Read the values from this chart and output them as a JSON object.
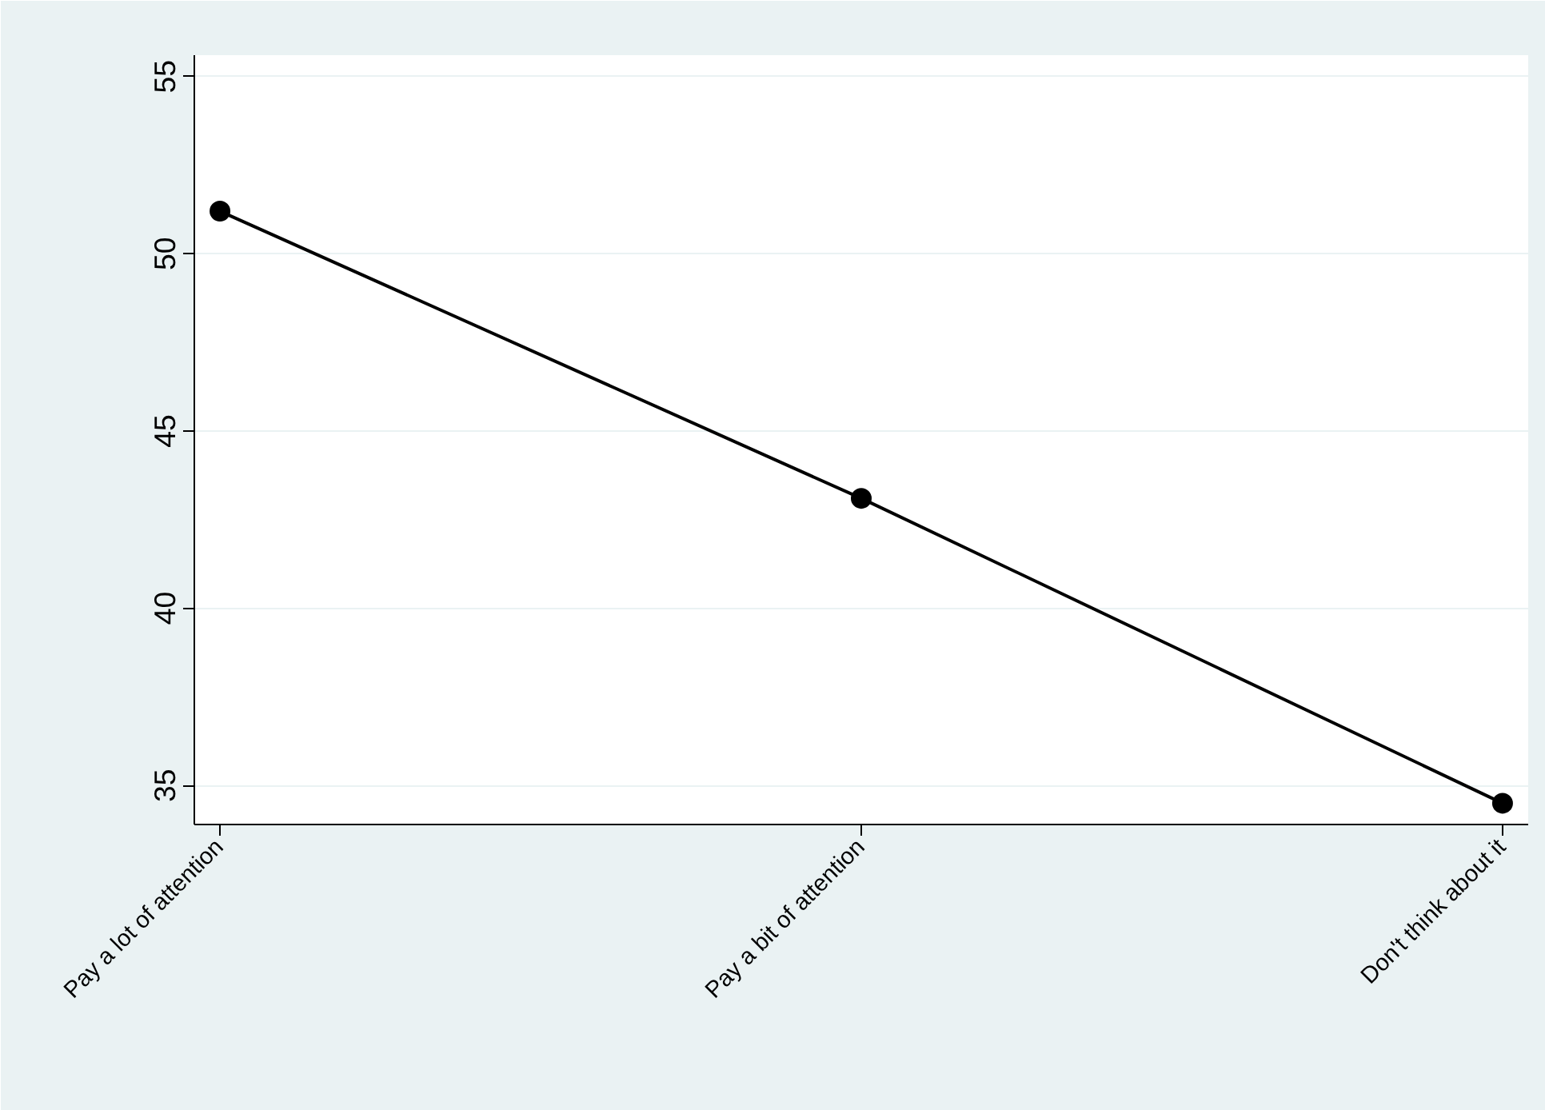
{
  "chart_data": {
    "type": "line",
    "categories": [
      "Pay a lot of attention",
      "Pay a bit of attention",
      "Don't think about it"
    ],
    "series": [
      {
        "color": "#000000",
        "values": [
          51.2,
          43.1,
          34.5
        ]
      }
    ],
    "ylim": [
      33.9,
      55.6
    ],
    "yticks": [
      35,
      40,
      45,
      50,
      55
    ],
    "grid": "y",
    "marker": "circle",
    "line_style": "solid"
  }
}
